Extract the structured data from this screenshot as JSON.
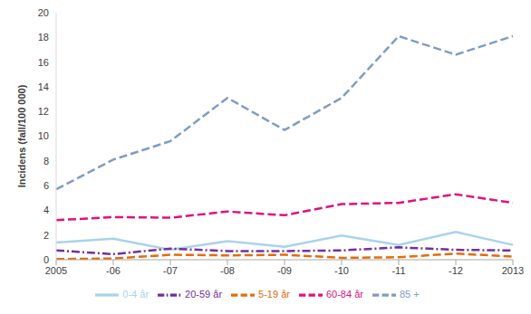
{
  "chart_data": {
    "type": "line",
    "y_label": "Incidens (fall/100 000)",
    "categories": [
      "2005",
      "-06",
      "-07",
      "-08",
      "-09",
      "-10",
      "-11",
      "-12",
      "2013"
    ],
    "ylim": [
      0,
      20
    ],
    "yticks": [
      0,
      2,
      4,
      6,
      8,
      10,
      12,
      14,
      16,
      18,
      20
    ],
    "grid": false,
    "legend": "bottom",
    "series": [
      {
        "name": "0-4 år",
        "color": "#a9d3ec",
        "line_style": "solid",
        "values": [
          1.4,
          1.7,
          0.8,
          1.5,
          1.05,
          1.95,
          1.2,
          2.25,
          1.2
        ]
      },
      {
        "name": "5-19 år",
        "color": "#e46c0a",
        "line_style": "dashed",
        "values": [
          0.05,
          0.1,
          0.4,
          0.35,
          0.4,
          0.15,
          0.2,
          0.5,
          0.25
        ]
      },
      {
        "name": "20-59 år",
        "color": "#7030a0",
        "line_style": "dashdot",
        "values": [
          0.75,
          0.45,
          0.9,
          0.7,
          0.7,
          0.75,
          1.0,
          0.8,
          0.75
        ]
      },
      {
        "name": "60-84 år",
        "color": "#e0117f",
        "line_style": "dashed",
        "values": [
          3.2,
          3.45,
          3.4,
          3.9,
          3.6,
          4.5,
          4.6,
          5.3,
          4.6
        ]
      },
      {
        "name": "85 +",
        "color": "#7f9cc4",
        "line_style": "dashed",
        "values": [
          5.7,
          8.1,
          9.6,
          13.1,
          10.5,
          13.1,
          18.1,
          16.6,
          18.1
        ]
      }
    ]
  }
}
